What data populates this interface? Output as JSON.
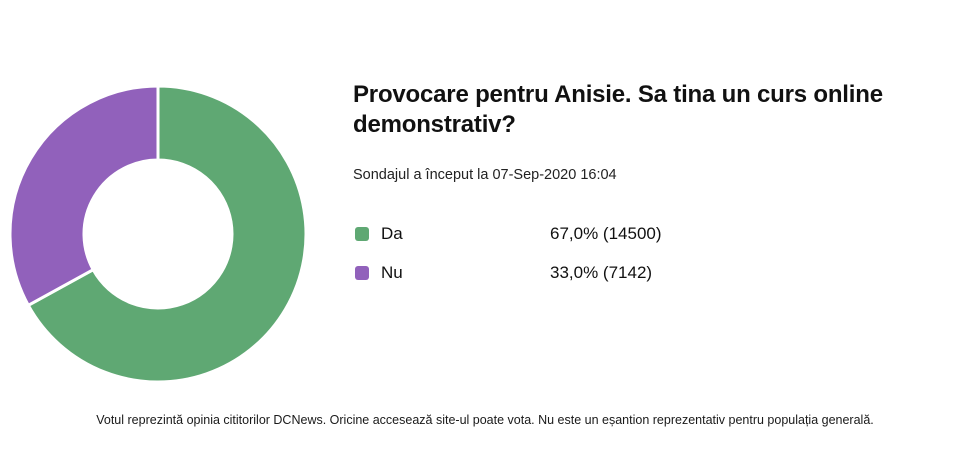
{
  "header": {
    "title": "Provocare pentru Anisie. Sa tina un curs online demonstrativ?",
    "subtitle": "Sondajul a început la 07-Sep-2020 16:04"
  },
  "legend": {
    "items": [
      {
        "label": "Da",
        "value_display": "67,0% (14500)",
        "color": "#5FA873"
      },
      {
        "label": "Nu",
        "value_display": "33,0% (7142)",
        "color": "#9161BB"
      }
    ]
  },
  "footer": {
    "disclaimer": "Votul reprezintă opinia cititorilor DCNews. Oricine accesează site-ul poate vota. Nu este un eșantion reprezentativ pentru populația generală."
  },
  "chart_data": {
    "type": "pie",
    "subtype": "donut",
    "title": "Provocare pentru Anisie. Sa tina un curs online demonstrativ?",
    "subtitle": "Sondajul a început la 07-Sep-2020 16:04",
    "categories": [
      "Da",
      "Nu"
    ],
    "values": [
      14500,
      7142
    ],
    "percentages": [
      67.0,
      33.0
    ],
    "colors": [
      "#5FA873",
      "#9161BB"
    ],
    "slice_separator_color": "#ffffff",
    "inner_radius_ratio": 0.5,
    "start_angle_deg": 0,
    "direction": "clockwise",
    "legend_position": "right"
  }
}
